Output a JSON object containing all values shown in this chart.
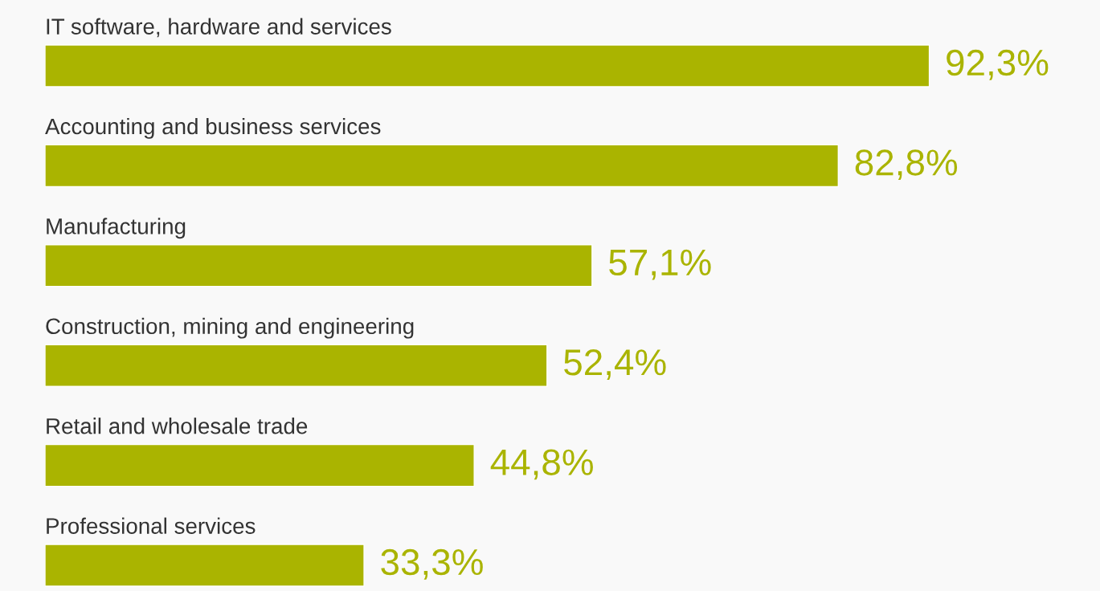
{
  "chart_data": {
    "type": "bar",
    "orientation": "horizontal",
    "categories": [
      "IT software, hardware and services",
      "Accounting and business services",
      "Manufacturing",
      "Construction, mining and engineering",
      "Retail and wholesale trade",
      "Professional services"
    ],
    "values": [
      92.3,
      82.8,
      57.1,
      52.4,
      44.8,
      33.3
    ],
    "value_labels": [
      "92,3%",
      "82,8%",
      "57,1%",
      "52,4%",
      "44,8%",
      "33,3%"
    ],
    "color": "#aab400",
    "xlim": [
      0,
      110
    ],
    "tick_labels": false
  }
}
